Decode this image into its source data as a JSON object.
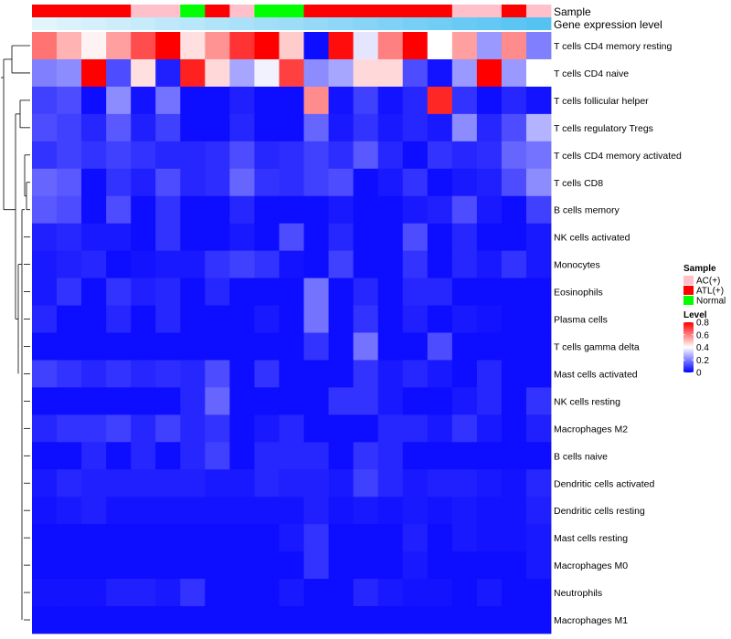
{
  "chart_data": {
    "type": "heatmap",
    "title": "",
    "annotation_tracks": [
      {
        "key": "sample",
        "label": "Sample",
        "values": [
          "ATL(+)",
          "ATL(+)",
          "ATL(+)",
          "ATL(+)",
          "AC(+)",
          "AC(+)",
          "Normal",
          "ATL(+)",
          "AC(+)",
          "Normal",
          "Normal",
          "ATL(+)",
          "ATL(+)",
          "ATL(+)",
          "ATL(+)",
          "ATL(+)",
          "ATL(+)",
          "AC(+)",
          "AC(+)",
          "ATL(+)",
          "AC(+)"
        ]
      },
      {
        "key": "expression",
        "label": "Gene expression level",
        "values": [
          0.02,
          0.06,
          0.1,
          0.14,
          0.18,
          0.22,
          0.26,
          0.3,
          0.34,
          0.38,
          0.42,
          0.46,
          0.5,
          0.54,
          0.58,
          0.62,
          0.66,
          0.7,
          0.74,
          0.78,
          0.82
        ]
      }
    ],
    "rows": [
      "T cells CD4 memory resting",
      "T cells CD4 naive",
      "T cells follicular helper",
      "T cells regulatory  Tregs",
      "T cells CD4 memory activated",
      "T cells CD8",
      "B cells memory",
      "NK cells activated",
      "Monocytes",
      "Eosinophils",
      "Plasma cells",
      "T cells gamma delta",
      "Mast cells activated",
      "NK cells resting",
      "Macrophages M2",
      "B cells naive",
      "Dendritic cells activated",
      "Dendritic cells resting",
      "Mast cells resting",
      "Macrophages M0",
      "Neutrophils",
      "Macrophages M1"
    ],
    "matrix": [
      [
        0.62,
        0.52,
        0.42,
        0.55,
        0.68,
        0.8,
        0.45,
        0.57,
        0.72,
        0.8,
        0.48,
        0.02,
        0.78,
        0.36,
        0.6,
        0.8,
        0.4,
        0.55,
        0.24,
        0.58,
        0.2
      ],
      [
        0.2,
        0.22,
        0.8,
        0.12,
        0.45,
        0.05,
        0.75,
        0.46,
        0.26,
        0.38,
        0.7,
        0.22,
        0.26,
        0.46,
        0.46,
        0.12,
        0.03,
        0.24,
        0.8,
        0.24,
        0.4
      ],
      [
        0.1,
        0.12,
        0.02,
        0.22,
        0.03,
        0.18,
        0.02,
        0.02,
        0.05,
        0.02,
        0.02,
        0.58,
        0.03,
        0.1,
        0.03,
        0.06,
        0.74,
        0.08,
        0.02,
        0.06,
        0.03
      ],
      [
        0.12,
        0.1,
        0.06,
        0.14,
        0.05,
        0.1,
        0.02,
        0.02,
        0.06,
        0.02,
        0.02,
        0.16,
        0.04,
        0.08,
        0.04,
        0.06,
        0.04,
        0.22,
        0.06,
        0.12,
        0.28
      ],
      [
        0.08,
        0.1,
        0.08,
        0.1,
        0.08,
        0.06,
        0.06,
        0.07,
        0.12,
        0.06,
        0.07,
        0.1,
        0.07,
        0.14,
        0.06,
        0.02,
        0.08,
        0.06,
        0.07,
        0.16,
        0.18
      ],
      [
        0.16,
        0.14,
        0.02,
        0.08,
        0.05,
        0.12,
        0.06,
        0.07,
        0.16,
        0.08,
        0.07,
        0.1,
        0.12,
        0.02,
        0.04,
        0.08,
        0.02,
        0.04,
        0.05,
        0.12,
        0.22
      ],
      [
        0.14,
        0.12,
        0.02,
        0.12,
        0.02,
        0.08,
        0.02,
        0.02,
        0.06,
        0.02,
        0.02,
        0.02,
        0.04,
        0.02,
        0.02,
        0.04,
        0.05,
        0.12,
        0.04,
        0.02,
        0.1
      ],
      [
        0.05,
        0.06,
        0.04,
        0.04,
        0.02,
        0.08,
        0.02,
        0.02,
        0.04,
        0.02,
        0.12,
        0.02,
        0.06,
        0.02,
        0.02,
        0.12,
        0.02,
        0.06,
        0.02,
        0.02,
        0.04
      ],
      [
        0.04,
        0.05,
        0.06,
        0.02,
        0.03,
        0.04,
        0.04,
        0.08,
        0.1,
        0.08,
        0.03,
        0.02,
        0.1,
        0.02,
        0.02,
        0.08,
        0.02,
        0.06,
        0.04,
        0.08,
        0.04
      ],
      [
        0.04,
        0.08,
        0.02,
        0.08,
        0.05,
        0.06,
        0.02,
        0.06,
        0.02,
        0.02,
        0.02,
        0.18,
        0.02,
        0.06,
        0.02,
        0.06,
        0.06,
        0.02,
        0.02,
        0.02,
        0.02
      ],
      [
        0.06,
        0.02,
        0.02,
        0.06,
        0.02,
        0.06,
        0.02,
        0.02,
        0.02,
        0.04,
        0.02,
        0.18,
        0.02,
        0.08,
        0.02,
        0.05,
        0.02,
        0.04,
        0.03,
        0.02,
        0.02
      ],
      [
        0.02,
        0.02,
        0.02,
        0.02,
        0.02,
        0.02,
        0.02,
        0.02,
        0.02,
        0.02,
        0.02,
        0.08,
        0.02,
        0.18,
        0.02,
        0.02,
        0.12,
        0.02,
        0.02,
        0.02,
        0.02
      ],
      [
        0.1,
        0.08,
        0.06,
        0.08,
        0.06,
        0.07,
        0.06,
        0.12,
        0.02,
        0.08,
        0.02,
        0.02,
        0.02,
        0.08,
        0.04,
        0.06,
        0.04,
        0.02,
        0.06,
        0.02,
        0.02
      ],
      [
        0.02,
        0.02,
        0.02,
        0.02,
        0.02,
        0.02,
        0.06,
        0.16,
        0.02,
        0.02,
        0.02,
        0.02,
        0.08,
        0.08,
        0.04,
        0.02,
        0.02,
        0.04,
        0.06,
        0.02,
        0.08
      ],
      [
        0.06,
        0.08,
        0.08,
        0.1,
        0.06,
        0.1,
        0.06,
        0.08,
        0.02,
        0.04,
        0.06,
        0.02,
        0.02,
        0.02,
        0.06,
        0.06,
        0.04,
        0.08,
        0.04,
        0.02,
        0.05
      ],
      [
        0.02,
        0.02,
        0.06,
        0.02,
        0.06,
        0.02,
        0.06,
        0.1,
        0.02,
        0.06,
        0.06,
        0.06,
        0.02,
        0.08,
        0.06,
        0.02,
        0.02,
        0.02,
        0.02,
        0.02,
        0.02
      ],
      [
        0.04,
        0.06,
        0.05,
        0.05,
        0.05,
        0.05,
        0.05,
        0.04,
        0.04,
        0.06,
        0.05,
        0.05,
        0.04,
        0.1,
        0.06,
        0.04,
        0.05,
        0.05,
        0.04,
        0.03,
        0.06
      ],
      [
        0.03,
        0.04,
        0.05,
        0.03,
        0.03,
        0.03,
        0.03,
        0.03,
        0.03,
        0.03,
        0.03,
        0.05,
        0.03,
        0.04,
        0.03,
        0.04,
        0.03,
        0.04,
        0.03,
        0.03,
        0.05
      ],
      [
        0.02,
        0.02,
        0.02,
        0.02,
        0.02,
        0.02,
        0.02,
        0.02,
        0.02,
        0.02,
        0.04,
        0.08,
        0.02,
        0.02,
        0.02,
        0.05,
        0.02,
        0.04,
        0.03,
        0.03,
        0.04
      ],
      [
        0.02,
        0.02,
        0.02,
        0.02,
        0.02,
        0.02,
        0.02,
        0.02,
        0.02,
        0.02,
        0.02,
        0.08,
        0.02,
        0.02,
        0.02,
        0.04,
        0.02,
        0.02,
        0.02,
        0.02,
        0.04
      ],
      [
        0.03,
        0.03,
        0.03,
        0.05,
        0.05,
        0.04,
        0.08,
        0.02,
        0.02,
        0.02,
        0.04,
        0.02,
        0.02,
        0.06,
        0.04,
        0.03,
        0.03,
        0.02,
        0.04,
        0.02,
        0.02
      ],
      [
        0.02,
        0.02,
        0.02,
        0.02,
        0.02,
        0.02,
        0.02,
        0.02,
        0.02,
        0.02,
        0.02,
        0.02,
        0.02,
        0.02,
        0.02,
        0.02,
        0.02,
        0.02,
        0.02,
        0.02,
        0.02
      ]
    ],
    "legend": {
      "sample_title": "Sample",
      "sample_items": [
        {
          "label": "AC(+)",
          "color": "#FFC0CB"
        },
        {
          "label": "ATL(+)",
          "color": "#FF0000"
        },
        {
          "label": "Normal",
          "color": "#00FF00"
        }
      ],
      "level_title": "Level",
      "level_ticks": [
        "0.8",
        "0.6",
        "0.4",
        "0.2",
        "0"
      ],
      "level_range": [
        0,
        0.8
      ]
    },
    "colors": {
      "low": "#0000FF",
      "mid": "#FFFFFF",
      "high": "#FF0000",
      "expr_low": "#E6F6FD",
      "expr_high": "#55C3F2"
    }
  }
}
